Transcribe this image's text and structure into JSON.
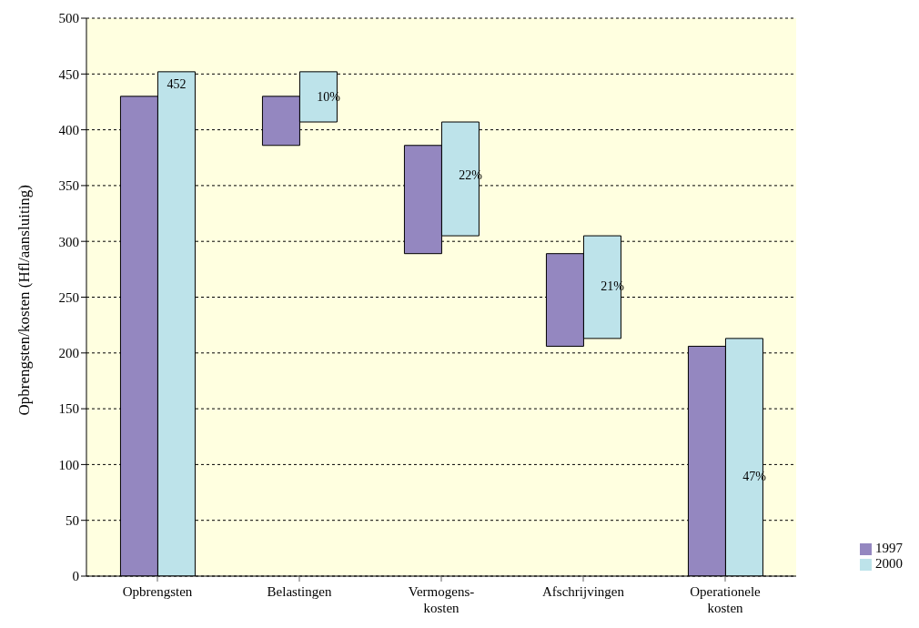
{
  "chart_data": {
    "type": "bar",
    "ylabel": "Opbrengsten/kosten (Hfl/aansluiting)",
    "categories": [
      "Opbrengsten",
      "Belastingen",
      "Vermogens-\nkosten",
      "Afschrijvingen",
      "Operationele\nkosten"
    ],
    "series": [
      {
        "name": "1997",
        "color": "#9487c0",
        "values": [
          430,
          44,
          97,
          83,
          206
        ],
        "base": [
          0,
          386,
          289,
          206,
          0
        ]
      },
      {
        "name": "2000",
        "color": "#bde3ea",
        "values": [
          452,
          45,
          102,
          92,
          213
        ],
        "base": [
          0,
          407,
          305,
          213,
          0
        ],
        "value_labels": [
          "452",
          null,
          null,
          null,
          null
        ]
      }
    ],
    "ylim": [
      0,
      500
    ],
    "yticks": [
      0,
      50,
      100,
      150,
      200,
      250,
      300,
      350,
      400,
      450,
      500
    ],
    "grid": "y",
    "legend": "bottom right",
    "annotations": [
      {
        "text": "10%",
        "x": "Belastingen",
        "y": 430
      },
      {
        "text": "22%",
        "x": "Vermogens-\nkosten",
        "y": 360
      },
      {
        "text": "21%",
        "x": "Afschrijvingen",
        "y": 260
      },
      {
        "text": "47%",
        "x": "Operationele\nkosten",
        "y": 90
      }
    ]
  }
}
